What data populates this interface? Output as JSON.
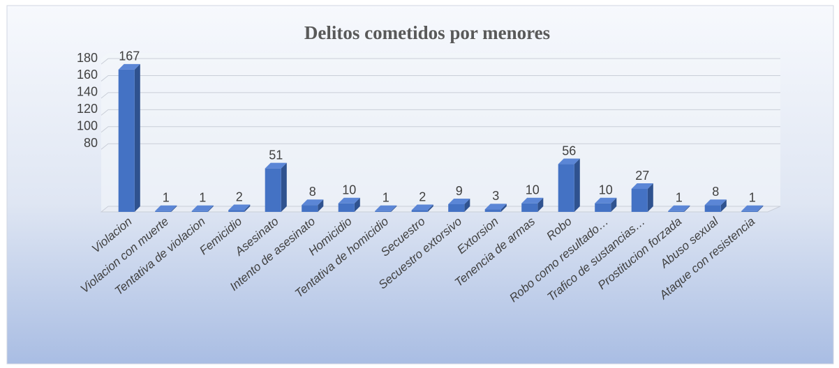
{
  "chart_data": {
    "type": "bar",
    "title": "Delitos cometidos por menores",
    "categories": [
      "Violacion",
      "Violacion con muerte",
      "Tentativa de violacion",
      "Femicidio",
      "Asesinato",
      "Intento de asesinato",
      "Homicidio",
      "Tentativa de homicidio",
      "Secuestro",
      "Secuestro extorsivo",
      "Extorsion",
      "Tenencia de armas",
      "Robo",
      "Robo como resultado…",
      "Trafico de sustancias…",
      "Prostitucion forzada",
      "Abuso sexual",
      "Ataque con resistencia"
    ],
    "values": [
      167,
      1,
      1,
      2,
      51,
      8,
      10,
      1,
      2,
      9,
      3,
      10,
      56,
      10,
      27,
      1,
      8,
      1
    ],
    "color": "#4472c4",
    "ylim": [
      0,
      180
    ],
    "yticks": [
      80,
      100,
      120,
      140,
      160,
      180
    ],
    "grid": true
  }
}
